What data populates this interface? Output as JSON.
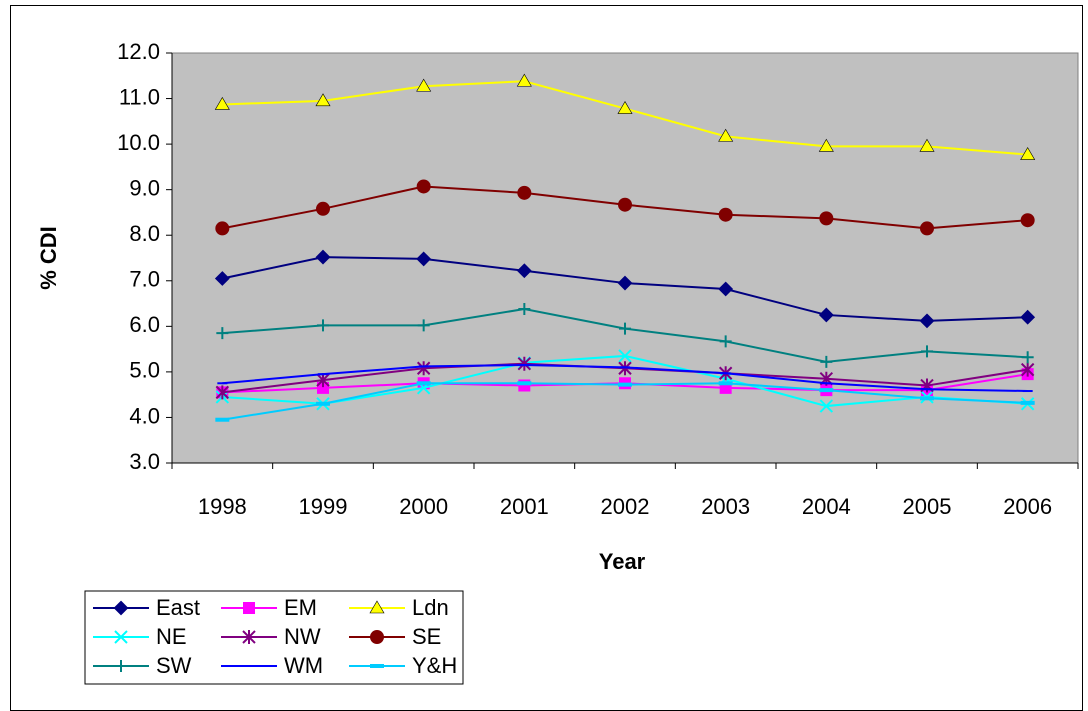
{
  "chart_data": {
    "type": "line",
    "x_label": "Year",
    "y_label": "% CDI",
    "categories": [
      "1998",
      "1999",
      "2000",
      "2001",
      "2002",
      "2003",
      "2004",
      "2005",
      "2006"
    ],
    "ylim": [
      3,
      12
    ],
    "yticks": [
      {
        "value": 3,
        "label": "3.0"
      },
      {
        "value": 4,
        "label": "4.0"
      },
      {
        "value": 5,
        "label": "5.0"
      },
      {
        "value": 6,
        "label": "6.0"
      },
      {
        "value": 7,
        "label": "7.0"
      },
      {
        "value": 8,
        "label": "8.0"
      },
      {
        "value": 9,
        "label": "9.0"
      },
      {
        "value": 10,
        "label": "10.0"
      },
      {
        "value": 11,
        "label": "11.0"
      },
      {
        "value": 12,
        "label": "12.0"
      }
    ],
    "grid": false,
    "legend": "bottom-left",
    "plot_background": "#c0c0c0",
    "series": [
      {
        "name": "East",
        "color": "#000080",
        "marker": "diamond",
        "values": [
          7.05,
          7.52,
          7.48,
          7.22,
          6.95,
          6.82,
          6.25,
          6.12,
          6.2
        ]
      },
      {
        "name": "EM",
        "color": "#ff00ff",
        "marker": "square",
        "values": [
          4.55,
          4.65,
          4.75,
          4.7,
          4.75,
          4.65,
          4.6,
          4.6,
          4.95
        ]
      },
      {
        "name": "Ldn",
        "color": "#ffff00",
        "marker": "triangle",
        "values": [
          10.87,
          10.95,
          11.27,
          11.38,
          10.78,
          10.17,
          9.95,
          9.95,
          9.77
        ]
      },
      {
        "name": "NE",
        "color": "#00ffff",
        "marker": "x",
        "values": [
          4.45,
          4.3,
          4.65,
          5.2,
          5.35,
          4.85,
          4.25,
          4.45,
          4.3
        ]
      },
      {
        "name": "NW",
        "color": "#800080",
        "marker": "star",
        "values": [
          4.55,
          4.82,
          5.08,
          5.18,
          5.08,
          4.97,
          4.85,
          4.7,
          5.05
        ]
      },
      {
        "name": "SE",
        "color": "#800000",
        "marker": "circle",
        "values": [
          8.15,
          8.58,
          9.07,
          8.93,
          8.67,
          8.45,
          8.37,
          8.15,
          8.33
        ]
      },
      {
        "name": "SW",
        "color": "#008080",
        "marker": "plus",
        "values": [
          5.85,
          6.02,
          6.02,
          6.38,
          5.95,
          5.67,
          5.22,
          5.45,
          5.32
        ]
      },
      {
        "name": "WM",
        "color": "#0000ff",
        "marker": "dash",
        "values": [
          4.75,
          4.95,
          5.12,
          5.15,
          5.1,
          4.97,
          4.75,
          4.62,
          4.58
        ]
      },
      {
        "name": "Y&H",
        "color": "#00ccff",
        "marker": "bar",
        "values": [
          3.95,
          4.3,
          4.75,
          4.75,
          4.72,
          4.75,
          4.6,
          4.42,
          4.32
        ]
      }
    ]
  }
}
